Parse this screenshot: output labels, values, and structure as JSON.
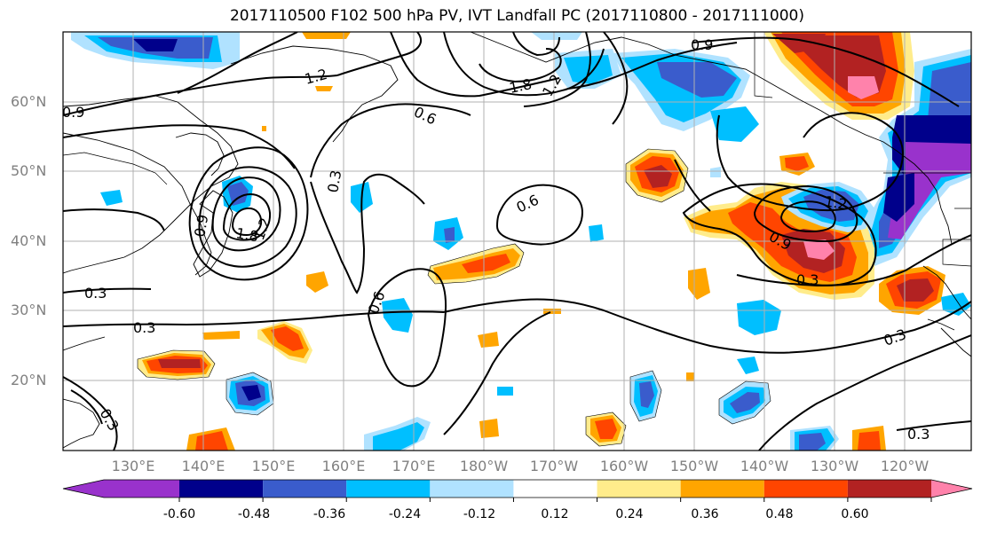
{
  "title": "2017110500 F102 500 hPa PV, IVT Landfall PC (2017110800 - 2017111000)",
  "lat_labels": [
    "60°N",
    "50°N",
    "40°N",
    "30°N",
    "20°N"
  ],
  "lon_labels": [
    "130°E",
    "140°E",
    "150°E",
    "160°E",
    "170°E",
    "180°W",
    "170°W",
    "160°W",
    "150°W",
    "140°W",
    "130°W",
    "120°W"
  ],
  "contour_labels": [
    "0.9",
    "1.2",
    "1.8",
    "1.2",
    "0.6",
    "0.9",
    "0.9",
    "1.8",
    "1.2",
    "0.3",
    "0.3",
    "0.6",
    "0.6",
    "0.3",
    "1.2",
    "0.9",
    "0.3",
    "0.3",
    "0.3",
    "0.3"
  ],
  "colorbar": {
    "colors": [
      "#9932cc",
      "#00008b",
      "#3a5ccc",
      "#00bfff",
      "#b0e2ff",
      "#ffffff",
      "#ffec8b",
      "#ffa500",
      "#ff4500",
      "#b22222",
      "#ff82ab"
    ],
    "tick_labels": [
      "-0.60",
      "-0.48",
      "-0.36",
      "-0.24",
      "-0.12",
      "0.12",
      "0.24",
      "0.36",
      "0.48",
      "0.60"
    ]
  },
  "fill_colors": {
    "purple": "#9932cc",
    "navy": "#00008b",
    "blue": "#3a5ccc",
    "cyan": "#00bfff",
    "lightblue": "#b0e2ff",
    "yellow": "#ffec8b",
    "orange": "#ffa500",
    "red": "#ff4500",
    "darkred": "#b22222",
    "pink": "#ff82ab"
  }
}
